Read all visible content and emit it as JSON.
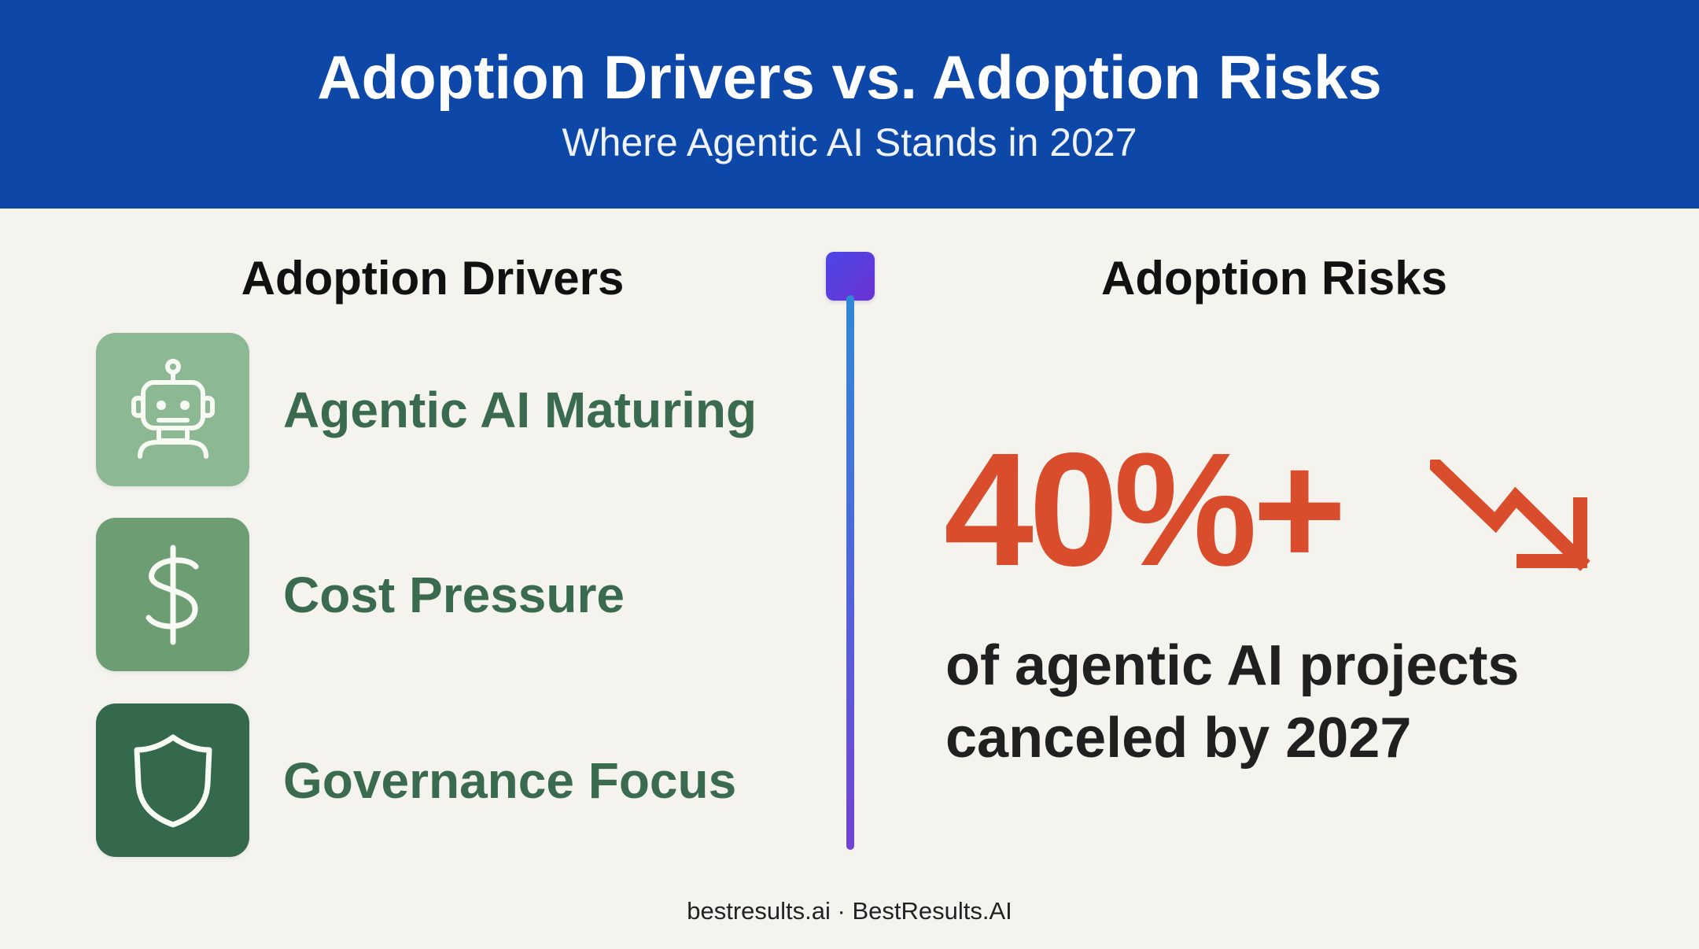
{
  "header": {
    "title": "Adoption Drivers vs. Adoption Risks",
    "subtitle": "Where Agentic AI Stands in 2027"
  },
  "drivers": {
    "heading": "Adoption Drivers",
    "items": [
      {
        "label": "Agentic AI Maturing",
        "icon": "robot-icon",
        "tile_color": "#8db894"
      },
      {
        "label": "Cost Pressure",
        "icon": "dollar-icon",
        "tile_color": "#6c9d73"
      },
      {
        "label": "Governance Focus",
        "icon": "shield-icon",
        "tile_color": "#34694b"
      }
    ]
  },
  "risks": {
    "heading": "Adoption Risks",
    "stat": "40%+",
    "caption_line_1": "of agentic AI projects",
    "caption_line_2": "canceled by 2027",
    "trend_icon": "downward-trend-arrow-icon",
    "stat_color": "#d94c2c"
  },
  "divider": {
    "colors": {
      "cap_start": "#4b47e7",
      "cap_end": "#6d32d2",
      "line_top": "#2f89d6",
      "line_bottom": "#7243d4"
    }
  },
  "footer": {
    "text": "bestresults.ai · BestResults.AI"
  },
  "colors": {
    "header_background": "#0d47a8",
    "page_background": "#f4f3ee",
    "driver_text": "#3b6b4f",
    "body_text": "#202020"
  }
}
